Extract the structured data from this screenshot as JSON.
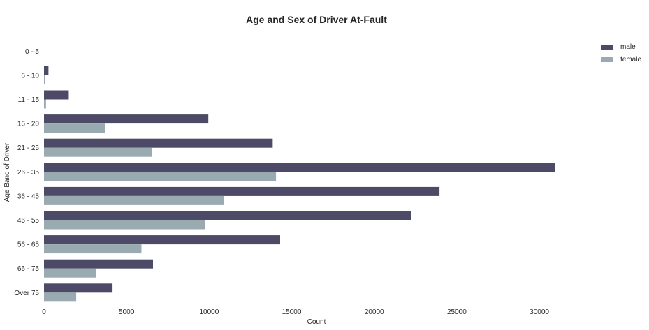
{
  "chart_data": {
    "type": "bar",
    "orientation": "horizontal",
    "title": "Age and Sex of Driver At-Fault",
    "xlabel": "Count",
    "ylabel": "Age Band of Driver",
    "xlim": [
      0,
      33000
    ],
    "xticks": [
      0,
      5000,
      10000,
      15000,
      20000,
      25000,
      30000
    ],
    "grid": false,
    "legend_position": "top-right",
    "categories": [
      "0 - 5",
      "6 - 10",
      "11 - 15",
      "16 - 20",
      "21 - 25",
      "26 - 35",
      "36 - 45",
      "46 - 55",
      "56 - 65",
      "66 - 75",
      "Over 75"
    ],
    "series": [
      {
        "name": "male",
        "color": "#4c4a66",
        "values": [
          0,
          270,
          1500,
          9950,
          13850,
          30950,
          23950,
          22250,
          14300,
          6600,
          4150
        ]
      },
      {
        "name": "female",
        "color": "#99abb1",
        "values": [
          0,
          50,
          120,
          3700,
          6550,
          14050,
          10900,
          9750,
          5900,
          3150,
          1950
        ]
      }
    ]
  }
}
